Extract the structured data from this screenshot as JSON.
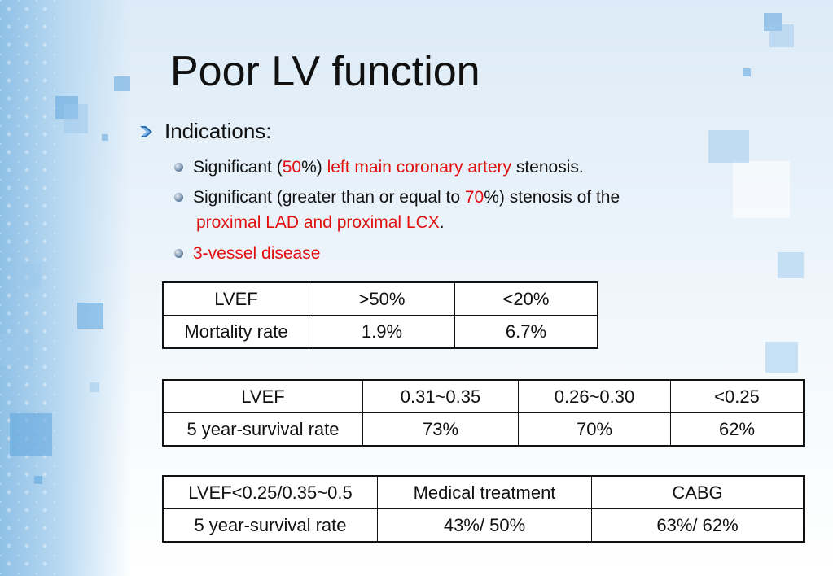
{
  "slide": {
    "title": "Poor LV function",
    "indications_label": "Indications:",
    "bullet1": {
      "p1": "Significant (",
      "n": "50",
      "p2": "%) ",
      "red": "left main coronary artery",
      "p3": " stenosis."
    },
    "bullet2": {
      "p1": "Significant (greater than or equal to ",
      "n": "70",
      "p2": "%) stenosis of the",
      "red": "proximal LAD and proximal LCX",
      "p3": "."
    },
    "bullet3": "3-vessel disease",
    "accent_red": "#e0100f"
  },
  "table1": {
    "rows": [
      [
        "LVEF",
        ">50%",
        "<20%"
      ],
      [
        "Mortality rate",
        "1.9%",
        "6.7%"
      ]
    ]
  },
  "table2": {
    "rows": [
      [
        "LVEF",
        "0.31~0.35",
        "0.26~0.30",
        "<0.25"
      ],
      [
        "5 year-survival rate",
        "73%",
        "70%",
        "62%"
      ]
    ]
  },
  "table3": {
    "rows": [
      [
        "LVEF<0.25/0.35~0.5",
        "Medical treatment",
        "CABG"
      ],
      [
        "5 year-survival rate",
        "43%/ 50%",
        "63%/ 62%"
      ]
    ]
  }
}
